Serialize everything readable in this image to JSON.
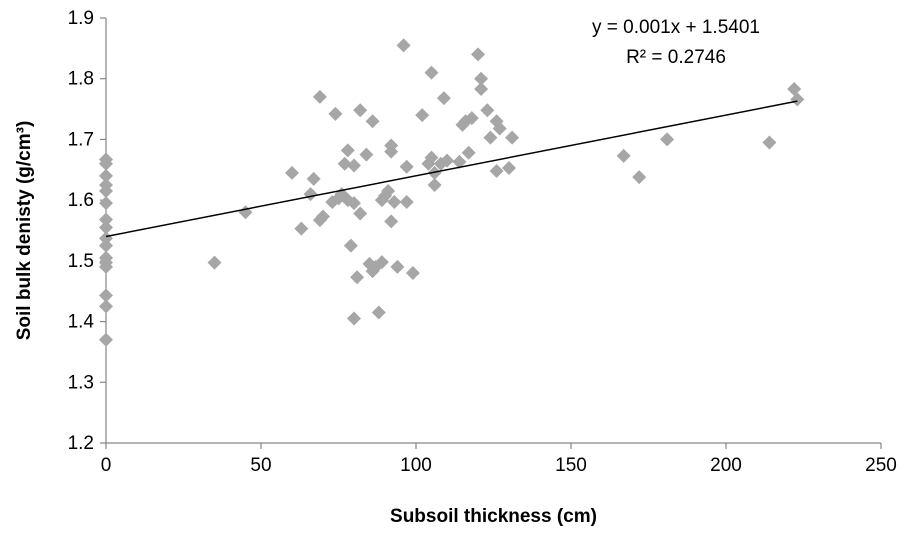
{
  "chart_data": {
    "type": "scatter",
    "xlabel": "Subsoil thickness (cm)",
    "ylabel": "Soil bulk denisty (g/cm³)",
    "xlim": [
      0,
      250
    ],
    "ylim": [
      1.2,
      1.9
    ],
    "x_ticks": [
      "0",
      "50",
      "100",
      "150",
      "200",
      "250"
    ],
    "y_ticks": [
      "1.2",
      "1.3",
      "1.4",
      "1.5",
      "1.6",
      "1.7",
      "1.8",
      "1.9"
    ],
    "grid": false,
    "legend": "none",
    "marker": "diamond",
    "marker_color": "#a6a6a6",
    "trendline": {
      "type": "linear",
      "slope": 0.001,
      "intercept": 1.5401,
      "equation_label": "y = 0.001x + 1.5401",
      "r2_label": "R² = 0.2746",
      "color": "#000000"
    },
    "points": [
      {
        "x": 0,
        "y": 1.667
      },
      {
        "x": 0,
        "y": 1.66
      },
      {
        "x": 0,
        "y": 1.64
      },
      {
        "x": 0,
        "y": 1.625
      },
      {
        "x": 0,
        "y": 1.615
      },
      {
        "x": 0,
        "y": 1.595
      },
      {
        "x": 0,
        "y": 1.568
      },
      {
        "x": 0,
        "y": 1.555
      },
      {
        "x": 0,
        "y": 1.537
      },
      {
        "x": 0,
        "y": 1.525
      },
      {
        "x": 0,
        "y": 1.505
      },
      {
        "x": 0,
        "y": 1.497
      },
      {
        "x": 0,
        "y": 1.49
      },
      {
        "x": 0,
        "y": 1.443
      },
      {
        "x": 0,
        "y": 1.425
      },
      {
        "x": 0,
        "y": 1.37
      },
      {
        "x": 35,
        "y": 1.497
      },
      {
        "x": 45,
        "y": 1.58
      },
      {
        "x": 60,
        "y": 1.645
      },
      {
        "x": 63,
        "y": 1.553
      },
      {
        "x": 66,
        "y": 1.61
      },
      {
        "x": 67,
        "y": 1.635
      },
      {
        "x": 69,
        "y": 1.77
      },
      {
        "x": 69,
        "y": 1.567
      },
      {
        "x": 70,
        "y": 1.573
      },
      {
        "x": 73,
        "y": 1.597
      },
      {
        "x": 74,
        "y": 1.742
      },
      {
        "x": 75,
        "y": 1.603
      },
      {
        "x": 76,
        "y": 1.61
      },
      {
        "x": 77,
        "y": 1.66
      },
      {
        "x": 78,
        "y": 1.682
      },
      {
        "x": 78,
        "y": 1.6
      },
      {
        "x": 79,
        "y": 1.525
      },
      {
        "x": 80,
        "y": 1.595
      },
      {
        "x": 80,
        "y": 1.657
      },
      {
        "x": 80,
        "y": 1.405
      },
      {
        "x": 81,
        "y": 1.473
      },
      {
        "x": 82,
        "y": 1.578
      },
      {
        "x": 82,
        "y": 1.748
      },
      {
        "x": 84,
        "y": 1.675
      },
      {
        "x": 85,
        "y": 1.495
      },
      {
        "x": 86,
        "y": 1.73
      },
      {
        "x": 86,
        "y": 1.483
      },
      {
        "x": 87,
        "y": 1.49
      },
      {
        "x": 88,
        "y": 1.415
      },
      {
        "x": 89,
        "y": 1.498
      },
      {
        "x": 89,
        "y": 1.6
      },
      {
        "x": 90,
        "y": 1.607
      },
      {
        "x": 91,
        "y": 1.615
      },
      {
        "x": 92,
        "y": 1.565
      },
      {
        "x": 92,
        "y": 1.68
      },
      {
        "x": 92,
        "y": 1.69
      },
      {
        "x": 93,
        "y": 1.597
      },
      {
        "x": 94,
        "y": 1.49
      },
      {
        "x": 96,
        "y": 1.855
      },
      {
        "x": 97,
        "y": 1.655
      },
      {
        "x": 97,
        "y": 1.597
      },
      {
        "x": 99,
        "y": 1.48
      },
      {
        "x": 102,
        "y": 1.74
      },
      {
        "x": 104,
        "y": 1.66
      },
      {
        "x": 105,
        "y": 1.81
      },
      {
        "x": 105,
        "y": 1.67
      },
      {
        "x": 106,
        "y": 1.625
      },
      {
        "x": 106,
        "y": 1.645
      },
      {
        "x": 108,
        "y": 1.66
      },
      {
        "x": 109,
        "y": 1.768
      },
      {
        "x": 110,
        "y": 1.665
      },
      {
        "x": 114,
        "y": 1.663
      },
      {
        "x": 115,
        "y": 1.724
      },
      {
        "x": 116,
        "y": 1.73
      },
      {
        "x": 117,
        "y": 1.678
      },
      {
        "x": 118,
        "y": 1.735
      },
      {
        "x": 120,
        "y": 1.84
      },
      {
        "x": 121,
        "y": 1.8
      },
      {
        "x": 121,
        "y": 1.783
      },
      {
        "x": 123,
        "y": 1.748
      },
      {
        "x": 124,
        "y": 1.703
      },
      {
        "x": 126,
        "y": 1.73
      },
      {
        "x": 126,
        "y": 1.648
      },
      {
        "x": 127,
        "y": 1.718
      },
      {
        "x": 130,
        "y": 1.653
      },
      {
        "x": 131,
        "y": 1.703
      },
      {
        "x": 167,
        "y": 1.673
      },
      {
        "x": 172,
        "y": 1.638
      },
      {
        "x": 181,
        "y": 1.7
      },
      {
        "x": 214,
        "y": 1.695
      },
      {
        "x": 222,
        "y": 1.783
      },
      {
        "x": 223,
        "y": 1.766
      }
    ]
  }
}
